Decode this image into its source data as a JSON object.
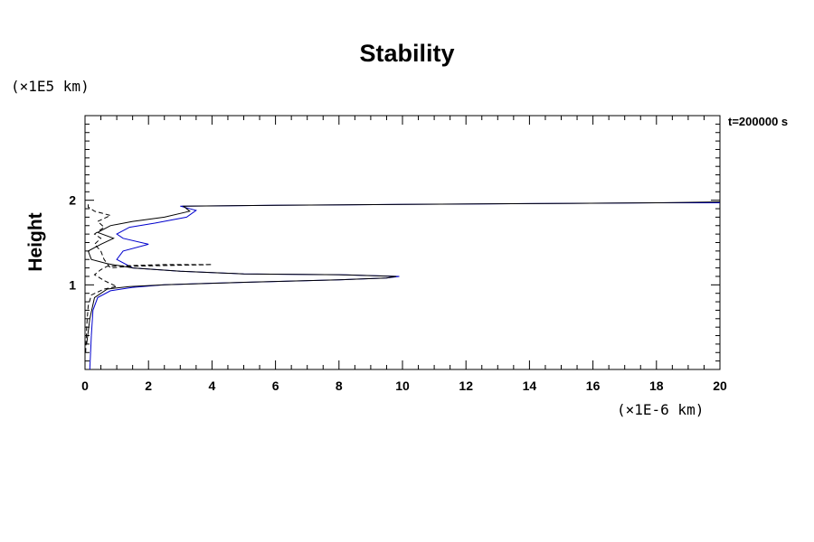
{
  "chart_data": {
    "type": "line",
    "title": "Stability",
    "xlabel": "",
    "ylabel": "Height",
    "x_units": "(×1E-6 km)",
    "y_units": "(×1E5 km)",
    "annotation": "t=200000 s",
    "xlim": [
      0,
      20
    ],
    "ylim": [
      0,
      3
    ],
    "x_ticks": [
      0,
      2,
      4,
      6,
      8,
      10,
      12,
      14,
      16,
      18,
      20
    ],
    "y_ticks": [
      1,
      2
    ],
    "grid": false,
    "series": [
      {
        "color": "#0000cc",
        "style": "solid",
        "points": [
          [
            0.15,
            0
          ],
          [
            0.2,
            0.4
          ],
          [
            0.25,
            0.7
          ],
          [
            0.4,
            0.85
          ],
          [
            0.8,
            0.93
          ],
          [
            1.5,
            0.97
          ],
          [
            2.5,
            1.0
          ],
          [
            4,
            1.02
          ],
          [
            6,
            1.04
          ],
          [
            8,
            1.06
          ],
          [
            9.5,
            1.08
          ],
          [
            9.9,
            1.1
          ],
          [
            8,
            1.12
          ],
          [
            5,
            1.13
          ],
          [
            3,
            1.16
          ],
          [
            1.5,
            1.2
          ],
          [
            1.0,
            1.3
          ],
          [
            1.2,
            1.4
          ],
          [
            2.0,
            1.48
          ],
          [
            1.2,
            1.55
          ],
          [
            1.0,
            1.6
          ],
          [
            1.4,
            1.68
          ],
          [
            2.2,
            1.73
          ],
          [
            3.2,
            1.8
          ],
          [
            3.5,
            1.88
          ],
          [
            3.0,
            1.93
          ],
          [
            6,
            1.94
          ],
          [
            10,
            1.95
          ],
          [
            14,
            1.96
          ],
          [
            18,
            1.97
          ],
          [
            20,
            1.97
          ]
        ]
      },
      {
        "color": "#000000",
        "style": "solid",
        "points": [
          [
            0.05,
            0.3
          ],
          [
            0.15,
            0.6
          ],
          [
            0.3,
            0.85
          ],
          [
            0.7,
            0.95
          ],
          [
            1.4,
            0.98
          ],
          [
            2.5,
            1.0
          ],
          [
            5,
            1.03
          ],
          [
            8,
            1.06
          ],
          [
            9.5,
            1.08
          ],
          [
            9.8,
            1.1
          ],
          [
            8,
            1.12
          ],
          [
            5,
            1.13
          ],
          [
            3,
            1.16
          ],
          [
            1.5,
            1.2
          ],
          [
            0.7,
            1.25
          ],
          [
            0.2,
            1.3
          ],
          [
            0.1,
            1.4
          ],
          [
            0.5,
            1.48
          ],
          [
            0.9,
            1.55
          ],
          [
            0.4,
            1.62
          ],
          [
            0.8,
            1.7
          ],
          [
            1.5,
            1.75
          ],
          [
            2.5,
            1.8
          ],
          [
            3.3,
            1.87
          ],
          [
            3.1,
            1.93
          ],
          [
            6,
            1.94
          ],
          [
            10,
            1.95
          ],
          [
            14,
            1.96
          ],
          [
            18,
            1.97
          ],
          [
            20,
            1.98
          ]
        ]
      },
      {
        "color": "#000000",
        "style": "dashed",
        "points": [
          [
            0.02,
            0.2
          ],
          [
            0.05,
            0.5
          ],
          [
            0.1,
            0.75
          ],
          [
            0.2,
            0.88
          ],
          [
            0.6,
            0.95
          ],
          [
            1.0,
            0.98
          ],
          [
            0.6,
            1.05
          ],
          [
            0.3,
            1.12
          ],
          [
            0.5,
            1.18
          ],
          [
            0.7,
            1.22
          ],
          [
            2.5,
            1.24
          ],
          [
            4,
            1.24
          ],
          [
            1.5,
            1.22
          ],
          [
            0.8,
            1.2
          ],
          [
            0.6,
            1.3
          ],
          [
            0.5,
            1.4
          ],
          [
            0.3,
            1.48
          ],
          [
            0.5,
            1.55
          ],
          [
            0.3,
            1.6
          ],
          [
            0.6,
            1.68
          ],
          [
            0.4,
            1.75
          ],
          [
            0.8,
            1.82
          ],
          [
            0.3,
            1.87
          ],
          [
            0.1,
            1.92
          ],
          [
            0.1,
            1.97
          ]
        ]
      }
    ]
  }
}
